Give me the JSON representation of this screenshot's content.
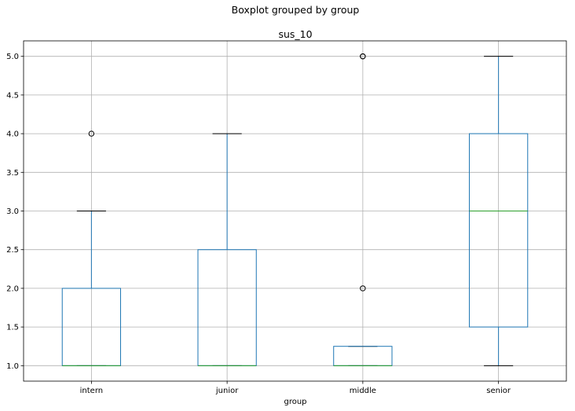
{
  "figure": {
    "suptitle": "Boxplot grouped by group"
  },
  "chart_data": {
    "type": "box",
    "title": "sus_10",
    "xlabel": "group",
    "ylabel": "",
    "categories": [
      "intern",
      "junior",
      "middle",
      "senior"
    ],
    "ylim": [
      0.8,
      5.2
    ],
    "yticks": [
      1.0,
      1.5,
      2.0,
      2.5,
      3.0,
      3.5,
      4.0,
      4.5,
      5.0
    ],
    "ytick_labels": [
      "1.0",
      "1.5",
      "2.0",
      "2.5",
      "3.0",
      "3.5",
      "4.0",
      "4.5",
      "5.0"
    ],
    "grid": true,
    "boxes": [
      {
        "name": "intern",
        "whisker_low": 1.0,
        "q1": 1.0,
        "median": 1.0,
        "q3": 2.0,
        "whisker_high": 3.0,
        "outliers": [
          4.0
        ]
      },
      {
        "name": "junior",
        "whisker_low": 1.0,
        "q1": 1.0,
        "median": 1.0,
        "q3": 2.5,
        "whisker_high": 4.0,
        "outliers": []
      },
      {
        "name": "middle",
        "whisker_low": 1.0,
        "q1": 1.0,
        "median": 1.0,
        "q3": 1.25,
        "whisker_high": 1.25,
        "outliers": [
          2.0,
          5.0,
          5.0
        ]
      },
      {
        "name": "senior",
        "whisker_low": 1.0,
        "q1": 1.5,
        "median": 3.0,
        "q3": 4.0,
        "whisker_high": 5.0,
        "outliers": []
      }
    ],
    "colors": {
      "box": "#1f77b4",
      "whisker": "#1f77b4",
      "median": "#2ca02c",
      "cap": "#000000",
      "outlier_edge": "#000000",
      "grid": "#b0b0b0",
      "axes": "#000000"
    }
  }
}
